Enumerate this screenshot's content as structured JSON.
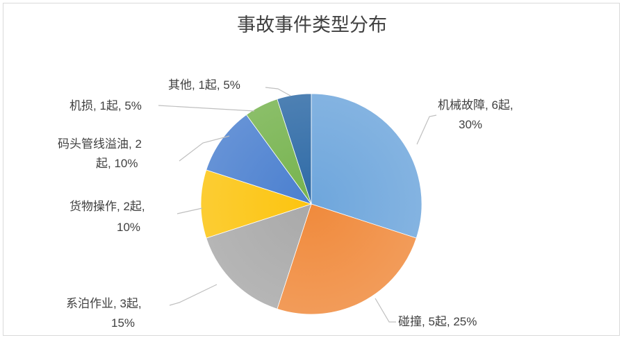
{
  "chart_data": {
    "type": "pie",
    "title": "事故事件类型分布",
    "start_angle": "top",
    "direction": "clockwise",
    "unit": "起",
    "slices": [
      {
        "label": "机械故障",
        "value": 6,
        "percent": "30%",
        "text": [
          "机械故障, 6起,",
          "30%"
        ],
        "color": "#6ea6dc"
      },
      {
        "label": "碰撞",
        "value": 5,
        "percent": "25%",
        "text": [
          "碰撞, 5起, 25%"
        ],
        "color": "#f08a3c"
      },
      {
        "label": "系泊作业",
        "value": 3,
        "percent": "15%",
        "text": [
          "系泊作业, 3起,",
          "15%"
        ],
        "color": "#a9a9a9"
      },
      {
        "label": "货物操作",
        "value": 2,
        "percent": "10%",
        "text": [
          "货物操作, 2起,",
          "10%"
        ],
        "color": "#fcc40f"
      },
      {
        "label": "码头管线溢油",
        "value": 2,
        "percent": "10%",
        "text": [
          "码头管线溢油, 2",
          "起, 10%"
        ],
        "color": "#4a7fcf"
      },
      {
        "label": "机损",
        "value": 1,
        "percent": "5%",
        "text": [
          "机损, 1起, 5%"
        ],
        "color": "#76b34e"
      },
      {
        "label": "其他",
        "value": 1,
        "percent": "5%",
        "text": [
          "其他, 1起, 5%"
        ],
        "color": "#2e6aa6"
      }
    ],
    "legend": "none",
    "data_labels": "outside with leader lines"
  }
}
